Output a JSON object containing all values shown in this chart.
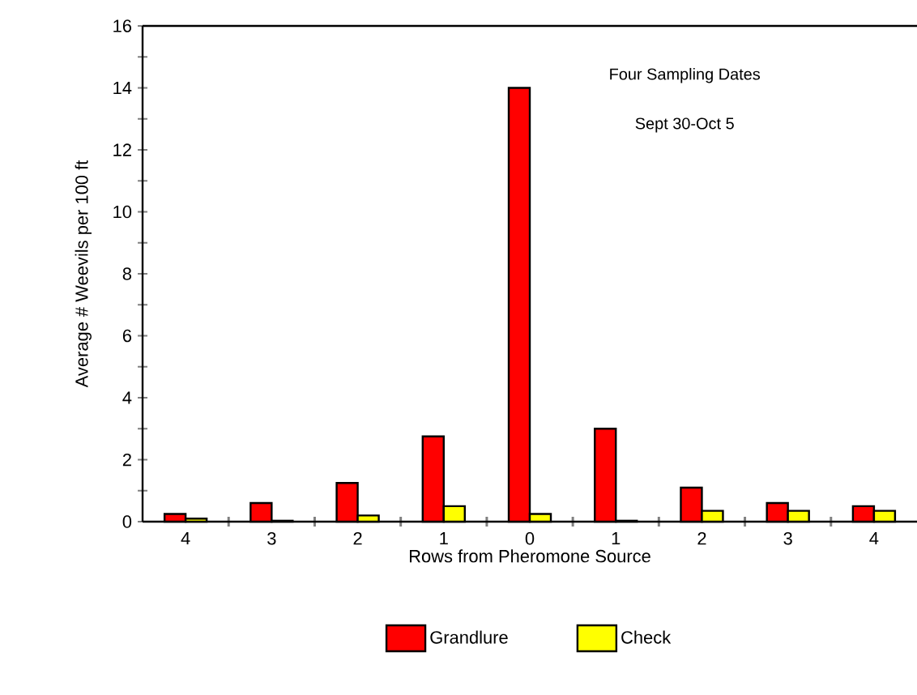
{
  "chart_data": {
    "type": "bar",
    "xlabel": "Rows from Pheromone Source",
    "ylabel": "Average # Weevils per 100 ft",
    "categories": [
      "4",
      "3",
      "2",
      "1",
      "0",
      "1",
      "2",
      "3",
      "4"
    ],
    "series": [
      {
        "name": "Grandlure",
        "color": "#ff0000",
        "values": [
          0.25,
          0.6,
          1.25,
          2.75,
          14,
          3.0,
          1.1,
          0.6,
          0.5
        ]
      },
      {
        "name": "Check",
        "color": "#ffff00",
        "values": [
          0.1,
          0.03,
          0.2,
          0.5,
          0.25,
          0.03,
          0.35,
          0.35,
          0.35
        ]
      }
    ],
    "ylim": [
      0,
      16
    ],
    "yticks": [
      0,
      2,
      4,
      6,
      8,
      10,
      12,
      14,
      16
    ],
    "annotations": [
      "Four Sampling Dates",
      "Sept 30-Oct 5"
    ],
    "legend": "bottom"
  }
}
